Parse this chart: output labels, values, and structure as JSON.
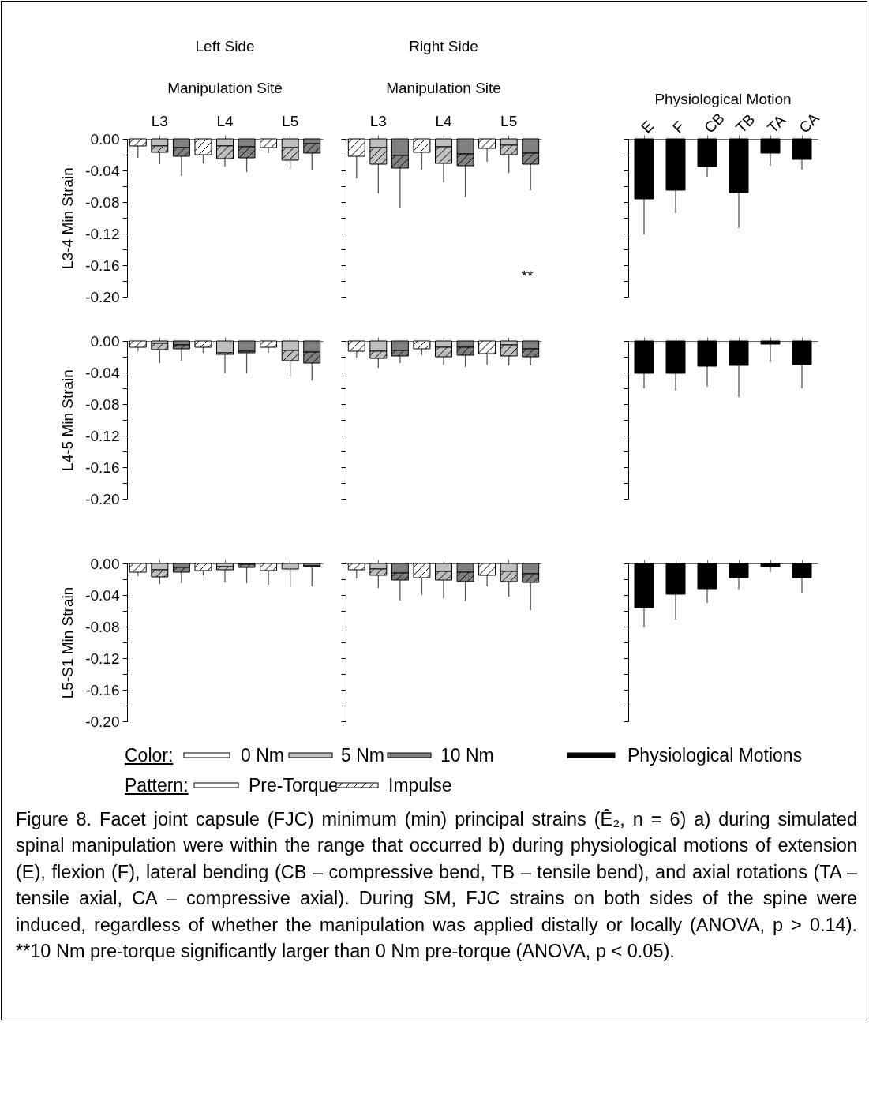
{
  "chart_data": [
    {
      "type": "bar",
      "title": "Left Side",
      "subtitle": "Manipulation Site",
      "ylabel": "L3-4 Min Strain",
      "stacked": true,
      "categories": [
        null,
        "L3",
        null,
        null,
        "L4",
        null,
        null,
        "L5",
        null
      ],
      "ylim": [
        -0.2,
        0
      ],
      "yticks": [
        {
          "value": 0,
          "label": "0.00"
        },
        {
          "value": -0.02,
          "label": null
        },
        {
          "value": -0.04,
          "label": "-0.04"
        },
        {
          "value": -0.06,
          "label": null
        },
        {
          "value": -0.08,
          "label": "-0.08"
        },
        {
          "value": -0.1,
          "label": null
        },
        {
          "value": -0.12,
          "label": "-0.12"
        },
        {
          "value": -0.14,
          "label": null
        },
        {
          "value": -0.16,
          "label": "-0.16"
        },
        {
          "value": -0.18,
          "label": null
        },
        {
          "value": -0.2,
          "label": "-0.20"
        }
      ],
      "series": [
        {
          "name": "Pre-Torque",
          "colors": [
            "#ffffff",
            "#c0c0c0",
            "#808080",
            "#ffffff",
            "#c0c0c0",
            "#808080",
            "#ffffff",
            "#c0c0c0",
            "#808080"
          ],
          "values": [
            0,
            -0.009,
            -0.011,
            0,
            -0.009,
            -0.01,
            0,
            -0.011,
            -0.006
          ]
        },
        {
          "name": "Impulse",
          "colors": [
            "#ffffff",
            "#c0c0c0",
            "#808080",
            "#ffffff",
            "#c0c0c0",
            "#808080",
            "#ffffff",
            "#c0c0c0",
            "#808080"
          ],
          "values": [
            -0.009,
            -0.008,
            -0.011,
            -0.02,
            -0.016,
            -0.014,
            -0.011,
            -0.016,
            -0.012
          ],
          "errors": [
            [
              -0.024,
              -0.009
            ],
            [
              -0.032,
              -0.017
            ],
            [
              -0.047,
              -0.022
            ],
            [
              -0.031,
              -0.02
            ],
            [
              -0.035,
              -0.025
            ],
            [
              -0.042,
              -0.024
            ],
            [
              -0.018,
              -0.011
            ],
            [
              -0.038,
              -0.027
            ],
            [
              -0.04,
              -0.018
            ]
          ]
        }
      ]
    },
    {
      "type": "bar",
      "title": "Right Side",
      "subtitle": "Manipulation Site",
      "stacked": true,
      "categories": [
        null,
        "L3",
        null,
        null,
        "L4",
        null,
        null,
        "L5",
        null
      ],
      "tick_labels": "x",
      "annotations": [
        "**"
      ],
      "ylim": [
        -0.2,
        0
      ],
      "yticks": [
        {
          "value": 0,
          "label": null
        },
        {
          "value": -0.02,
          "label": null
        },
        {
          "value": -0.04,
          "label": null
        },
        {
          "value": -0.06,
          "label": null
        },
        {
          "value": -0.08,
          "label": null
        },
        {
          "value": -0.1,
          "label": null
        },
        {
          "value": -0.12,
          "label": null
        },
        {
          "value": -0.14,
          "label": null
        },
        {
          "value": -0.16,
          "label": null
        },
        {
          "value": -0.18,
          "label": null
        },
        {
          "value": -0.2,
          "label": null
        }
      ],
      "series": [
        {
          "colors": [
            "#ffffff",
            "#c0c0c0",
            "#808080",
            "#ffffff",
            "#c0c0c0",
            "#808080",
            "#ffffff",
            "#c0c0c0",
            "#808080"
          ],
          "values": [
            0,
            -0.011,
            -0.021,
            0,
            -0.01,
            -0.019,
            0,
            -0.008,
            -0.018
          ]
        },
        {
          "colors": [
            "#ffffff",
            "#c0c0c0",
            "#808080",
            "#ffffff",
            "#c0c0c0",
            "#808080",
            "#ffffff",
            "#c0c0c0",
            "#808080"
          ],
          "values": [
            -0.022,
            -0.021,
            -0.016,
            -0.017,
            -0.021,
            -0.015,
            -0.012,
            -0.012,
            -0.014
          ],
          "errors": [
            [
              -0.05,
              -0.022
            ],
            [
              -0.069,
              -0.032
            ],
            [
              -0.088,
              -0.037
            ],
            [
              -0.039,
              -0.017
            ],
            [
              -0.055,
              -0.031
            ],
            [
              -0.074,
              -0.034
            ],
            [
              -0.029,
              -0.012
            ],
            [
              -0.043,
              -0.02
            ],
            [
              -0.065,
              -0.032
            ]
          ]
        }
      ]
    },
    {
      "type": "bar",
      "title": "Physiological Motion",
      "categories": [
        "E",
        "F",
        "CB",
        "TB",
        "TA",
        "CA"
      ],
      "tick_labels": "x",
      "ylim": [
        -0.2,
        0
      ],
      "yticks": [
        {
          "value": 0,
          "label": null
        },
        {
          "value": -0.02,
          "label": null
        },
        {
          "value": -0.04,
          "label": null
        },
        {
          "value": -0.06,
          "label": null
        },
        {
          "value": -0.08,
          "label": null
        },
        {
          "value": -0.1,
          "label": null
        },
        {
          "value": -0.12,
          "label": null
        },
        {
          "value": -0.14,
          "label": null
        },
        {
          "value": -0.16,
          "label": null
        },
        {
          "value": -0.18,
          "label": null
        },
        {
          "value": -0.2,
          "label": null
        }
      ],
      "series": [
        {
          "color": "#000000",
          "values": [
            -0.076,
            -0.065,
            -0.035,
            -0.068,
            -0.018,
            -0.026
          ],
          "errors": [
            [
              -0.121,
              -0.076
            ],
            [
              -0.094,
              -0.065
            ],
            [
              -0.048,
              -0.035
            ],
            [
              -0.113,
              -0.068
            ],
            [
              -0.034,
              -0.018
            ],
            [
              -0.039,
              -0.026
            ]
          ]
        }
      ]
    },
    {
      "type": "bar",
      "ylabel": "L4-5 Min Strain",
      "stacked": true,
      "categories": [
        null,
        null,
        null,
        null,
        null,
        null,
        null,
        null,
        null
      ],
      "tick_labels": "y",
      "ylim": [
        -0.2,
        0
      ],
      "yticks": [
        {
          "value": 0,
          "label": "0.00"
        },
        {
          "value": -0.02,
          "label": null
        },
        {
          "value": -0.04,
          "label": "-0.04"
        },
        {
          "value": -0.06,
          "label": null
        },
        {
          "value": -0.08,
          "label": "-0.08"
        },
        {
          "value": -0.1,
          "label": null
        },
        {
          "value": -0.12,
          "label": "-0.12"
        },
        {
          "value": -0.14,
          "label": null
        },
        {
          "value": -0.16,
          "label": "-0.16"
        },
        {
          "value": -0.18,
          "label": null
        },
        {
          "value": -0.2,
          "label": "-0.20"
        }
      ],
      "series": [
        {
          "colors": [
            "#ffffff",
            "#c0c0c0",
            "#808080",
            "#ffffff",
            "#c0c0c0",
            "#808080",
            "#ffffff",
            "#c0c0c0",
            "#808080"
          ],
          "values": [
            0,
            -0.003,
            -0.005,
            0,
            -0.015,
            -0.013,
            0,
            -0.012,
            -0.014
          ]
        },
        {
          "colors": [
            "#ffffff",
            "#c0c0c0",
            "#808080",
            "#ffffff",
            "#c0c0c0",
            "#808080",
            "#ffffff",
            "#c0c0c0",
            "#808080"
          ],
          "values": [
            -0.008,
            -0.008,
            -0.005,
            -0.008,
            -0.002,
            -0.002,
            -0.008,
            -0.013,
            -0.014
          ],
          "errors": [
            [
              -0.013,
              -0.008
            ],
            [
              -0.028,
              -0.011
            ],
            [
              -0.025,
              -0.01
            ],
            [
              -0.015,
              -0.008
            ],
            [
              -0.041,
              -0.017
            ],
            [
              -0.041,
              -0.015
            ],
            [
              -0.015,
              -0.008
            ],
            [
              -0.045,
              -0.025
            ],
            [
              -0.05,
              -0.028
            ]
          ]
        }
      ]
    },
    {
      "type": "bar",
      "stacked": true,
      "categories": [
        null,
        null,
        null,
        null,
        null,
        null,
        null,
        null,
        null
      ],
      "tick_labels": false,
      "ylim": [
        -0.2,
        0
      ],
      "yticks": [
        {
          "value": 0,
          "label": null
        },
        {
          "value": -0.02,
          "label": null
        },
        {
          "value": -0.04,
          "label": null
        },
        {
          "value": -0.06,
          "label": null
        },
        {
          "value": -0.08,
          "label": null
        },
        {
          "value": -0.1,
          "label": null
        },
        {
          "value": -0.12,
          "label": null
        },
        {
          "value": -0.14,
          "label": null
        },
        {
          "value": -0.16,
          "label": null
        },
        {
          "value": -0.18,
          "label": null
        },
        {
          "value": -0.2,
          "label": null
        }
      ],
      "series": [
        {
          "colors": [
            "#ffffff",
            "#c0c0c0",
            "#808080",
            "#ffffff",
            "#c0c0c0",
            "#808080",
            "#ffffff",
            "#c0c0c0",
            "#808080"
          ],
          "values": [
            0,
            -0.013,
            -0.012,
            0,
            -0.008,
            -0.008,
            0,
            -0.005,
            -0.01
          ]
        },
        {
          "colors": [
            "#ffffff",
            "#c0c0c0",
            "#808080",
            "#ffffff",
            "#c0c0c0",
            "#808080",
            "#ffffff",
            "#c0c0c0",
            "#808080"
          ],
          "values": [
            -0.013,
            -0.009,
            -0.007,
            -0.01,
            -0.012,
            -0.01,
            -0.016,
            -0.014,
            -0.01
          ],
          "errors": [
            [
              -0.021,
              -0.013
            ],
            [
              -0.034,
              -0.022
            ],
            [
              -0.028,
              -0.019
            ],
            [
              -0.018,
              -0.01
            ],
            [
              -0.03,
              -0.02
            ],
            [
              -0.033,
              -0.018
            ],
            [
              -0.03,
              -0.016
            ],
            [
              -0.031,
              -0.019
            ],
            [
              -0.031,
              -0.02
            ]
          ]
        }
      ]
    },
    {
      "type": "bar",
      "categories": [
        null,
        null,
        null,
        null,
        null,
        null
      ],
      "tick_labels": false,
      "ylim": [
        -0.2,
        0
      ],
      "yticks": [
        {
          "value": 0,
          "label": null
        },
        {
          "value": -0.02,
          "label": null
        },
        {
          "value": -0.04,
          "label": null
        },
        {
          "value": -0.06,
          "label": null
        },
        {
          "value": -0.08,
          "label": null
        },
        {
          "value": -0.1,
          "label": null
        },
        {
          "value": -0.12,
          "label": null
        },
        {
          "value": -0.14,
          "label": null
        },
        {
          "value": -0.16,
          "label": null
        },
        {
          "value": -0.18,
          "label": null
        },
        {
          "value": -0.2,
          "label": null
        }
      ],
      "series": [
        {
          "color": "#000000",
          "values": [
            -0.041,
            -0.041,
            -0.032,
            -0.031,
            -0.004,
            -0.03
          ],
          "errors": [
            [
              -0.06,
              -0.041
            ],
            [
              -0.063,
              -0.041
            ],
            [
              -0.058,
              -0.032
            ],
            [
              -0.071,
              -0.031
            ],
            [
              -0.027,
              -0.004
            ],
            [
              -0.06,
              -0.03
            ]
          ]
        }
      ]
    },
    {
      "type": "bar",
      "ylabel": "L5-S1 Min Strain",
      "stacked": true,
      "categories": [
        null,
        null,
        null,
        null,
        null,
        null,
        null,
        null,
        null
      ],
      "tick_labels": "y",
      "ylim": [
        -0.2,
        0
      ],
      "yticks": [
        {
          "value": 0,
          "label": "0.00"
        },
        {
          "value": -0.02,
          "label": null
        },
        {
          "value": -0.04,
          "label": "-0.04"
        },
        {
          "value": -0.06,
          "label": null
        },
        {
          "value": -0.08,
          "label": "-0.08"
        },
        {
          "value": -0.1,
          "label": null
        },
        {
          "value": -0.12,
          "label": "-0.12"
        },
        {
          "value": -0.14,
          "label": null
        },
        {
          "value": -0.16,
          "label": "-0.16"
        },
        {
          "value": -0.18,
          "label": null
        },
        {
          "value": -0.2,
          "label": "-0.20"
        }
      ],
      "series": [
        {
          "colors": [
            "#ffffff",
            "#c0c0c0",
            "#808080",
            "#ffffff",
            "#c0c0c0",
            "#808080",
            "#ffffff",
            "#c0c0c0",
            "#808080"
          ],
          "values": [
            0,
            -0.008,
            -0.005,
            0,
            -0.004,
            -0.001,
            0,
            -0.007,
            -0.003
          ]
        },
        {
          "colors": [
            "#ffffff",
            "#c0c0c0",
            "#808080",
            "#ffffff",
            "#c0c0c0",
            "#808080",
            "#ffffff",
            "#c0c0c0",
            "#808080"
          ],
          "values": [
            -0.011,
            -0.009,
            -0.006,
            -0.009,
            -0.004,
            -0.004,
            -0.009,
            0,
            -0.001
          ],
          "errors": [
            [
              -0.016,
              -0.011
            ],
            [
              -0.026,
              -0.017
            ],
            [
              -0.025,
              -0.011
            ],
            [
              -0.015,
              -0.009
            ],
            [
              -0.024,
              -0.008
            ],
            [
              -0.025,
              -0.005
            ],
            [
              -0.027,
              -0.009
            ],
            [
              -0.03,
              -0.007
            ],
            [
              -0.029,
              -0.004
            ]
          ]
        }
      ]
    },
    {
      "type": "bar",
      "stacked": true,
      "categories": [
        null,
        null,
        null,
        null,
        null,
        null,
        null,
        null,
        null
      ],
      "tick_labels": false,
      "ylim": [
        -0.2,
        0
      ],
      "yticks": [
        {
          "value": 0,
          "label": null
        },
        {
          "value": -0.02,
          "label": null
        },
        {
          "value": -0.04,
          "label": null
        },
        {
          "value": -0.06,
          "label": null
        },
        {
          "value": -0.08,
          "label": null
        },
        {
          "value": -0.1,
          "label": null
        },
        {
          "value": -0.12,
          "label": null
        },
        {
          "value": -0.14,
          "label": null
        },
        {
          "value": -0.16,
          "label": null
        },
        {
          "value": -0.18,
          "label": null
        },
        {
          "value": -0.2,
          "label": null
        }
      ],
      "series": [
        {
          "colors": [
            "#ffffff",
            "#c0c0c0",
            "#808080",
            "#ffffff",
            "#c0c0c0",
            "#808080",
            "#ffffff",
            "#c0c0c0",
            "#808080"
          ],
          "values": [
            0,
            -0.007,
            -0.012,
            0,
            -0.01,
            -0.011,
            0,
            -0.01,
            -0.013
          ]
        },
        {
          "colors": [
            "#ffffff",
            "#c0c0c0",
            "#808080",
            "#ffffff",
            "#c0c0c0",
            "#808080",
            "#ffffff",
            "#c0c0c0",
            "#808080"
          ],
          "values": [
            -0.008,
            -0.008,
            -0.009,
            -0.018,
            -0.011,
            -0.012,
            -0.015,
            -0.013,
            -0.011
          ],
          "errors": [
            [
              -0.019,
              -0.008
            ],
            [
              -0.031,
              -0.015
            ],
            [
              -0.047,
              -0.021
            ],
            [
              -0.04,
              -0.018
            ],
            [
              -0.044,
              -0.021
            ],
            [
              -0.048,
              -0.023
            ],
            [
              -0.029,
              -0.015
            ],
            [
              -0.042,
              -0.023
            ],
            [
              -0.059,
              -0.024
            ]
          ]
        }
      ]
    },
    {
      "type": "bar",
      "categories": [
        null,
        null,
        null,
        null,
        null,
        null
      ],
      "tick_labels": false,
      "ylim": [
        -0.2,
        0
      ],
      "yticks": [
        {
          "value": 0,
          "label": null
        },
        {
          "value": -0.02,
          "label": null
        },
        {
          "value": -0.04,
          "label": null
        },
        {
          "value": -0.06,
          "label": null
        },
        {
          "value": -0.08,
          "label": null
        },
        {
          "value": -0.1,
          "label": null
        },
        {
          "value": -0.12,
          "label": null
        },
        {
          "value": -0.14,
          "label": null
        },
        {
          "value": -0.16,
          "label": null
        },
        {
          "value": -0.18,
          "label": null
        },
        {
          "value": -0.2,
          "label": null
        }
      ],
      "series": [
        {
          "color": "#000000",
          "values": [
            -0.056,
            -0.039,
            -0.032,
            -0.018,
            -0.004,
            -0.018
          ],
          "errors": [
            [
              -0.081,
              -0.056
            ],
            [
              -0.071,
              -0.039
            ],
            [
              -0.05,
              -0.032
            ],
            [
              -0.033,
              -0.018
            ],
            [
              -0.011,
              -0.004
            ],
            [
              -0.038,
              -0.018
            ]
          ]
        }
      ]
    },
    {
      "type": "other",
      "annotations": [
        "Color:",
        "0 Nm",
        "5 Nm",
        "10 Nm",
        "Physiological Motions",
        "Pattern:",
        "Figure 8. Facet joint capsule (FJC) minimum (min) principal strains (Ê₂, n = 6) a) during simulated spinal manipulation were within the range that occurred b) during physiological motions of extension (E), flexion (F), lateral bending (CB – compressive bend, TB – tensile bend), and axial rotations (TA – tensile axial, CA – compressive axial). During SM, FJC strains on both sides of the spine were induced, regardless of whether the manipulation was applied distally or locally (ANOVA, p > 0.14). **10 Nm pre-torque significantly larger than 0 Nm pre-torque (ANOVA, p < 0.05)."
      ]
    }
  ]
}
